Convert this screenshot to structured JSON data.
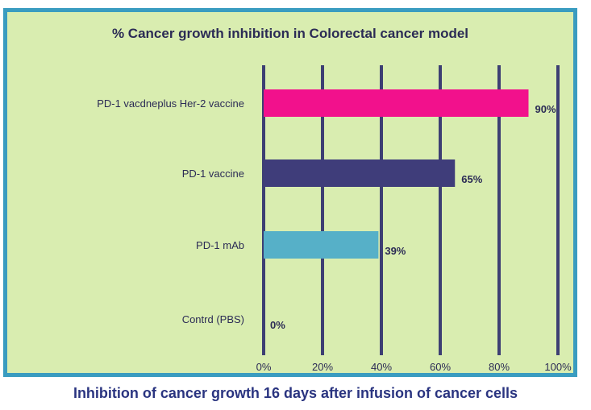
{
  "caption": "Inhibition of cancer growth 16 days after infusion of cancer cells",
  "chart_data": {
    "type": "bar",
    "orientation": "horizontal",
    "title": "% Cancer growth inhibition in Colorectal cancer model",
    "categories": [
      "PD-1 vacdneplus Her-2 vaccine",
      "PD-1 vaccine",
      "PD-1 mAb",
      "Contrd (PBS)"
    ],
    "values": [
      90,
      65,
      39,
      0
    ],
    "data_labels": [
      "90%",
      "65%",
      "39%",
      "0%"
    ],
    "bar_colors": [
      "#f2118c",
      "#3f3d7a",
      "#56b0c8",
      "#3f3d7a"
    ],
    "xlim": [
      0,
      100
    ],
    "xticks": [
      0,
      20,
      40,
      60,
      80,
      100
    ],
    "xtick_labels": [
      "0%",
      "20%",
      "40%",
      "60%",
      "80%",
      "100%"
    ],
    "grid": true,
    "grid_color": "#3d3f73",
    "background": "#d9edb0",
    "border_color": "#3a9cc0"
  }
}
